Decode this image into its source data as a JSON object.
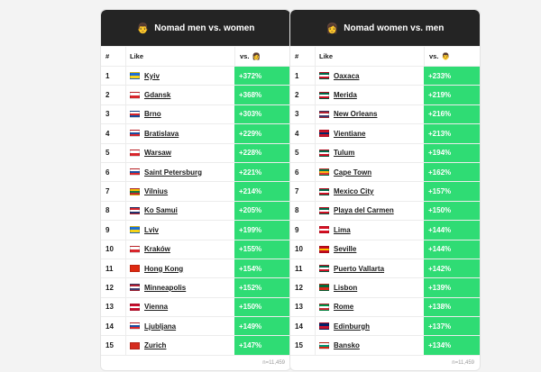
{
  "tables": [
    {
      "title": "Nomad men vs. women",
      "title_emoji": "👨",
      "header": {
        "num": "#",
        "like": "Like",
        "vs": "vs.",
        "vs_emoji": "👩"
      },
      "rows": [
        {
          "num": "1",
          "city": "Kyiv",
          "flag": [
            "#1b6fd6",
            "#f5d318"
          ],
          "vs": "+372%"
        },
        {
          "num": "2",
          "city": "Gdansk",
          "flag": [
            "#ffffff",
            "#d9262c"
          ],
          "vs": "+368%"
        },
        {
          "num": "3",
          "city": "Brno",
          "flag": [
            "#ffffff",
            "#d9262c",
            "#164a9b"
          ],
          "vs": "+303%"
        },
        {
          "num": "4",
          "city": "Bratislava",
          "flag": [
            "#ffffff",
            "#1a4ea3",
            "#d9262c"
          ],
          "vs": "+229%"
        },
        {
          "num": "5",
          "city": "Warsaw",
          "flag": [
            "#ffffff",
            "#d9262c"
          ],
          "vs": "+228%"
        },
        {
          "num": "6",
          "city": "Saint Petersburg",
          "flag": [
            "#ffffff",
            "#1a4ea3",
            "#d9262c"
          ],
          "vs": "+221%"
        },
        {
          "num": "7",
          "city": "Vilnius",
          "flag": [
            "#f8c300",
            "#1a7a3a",
            "#c1272d"
          ],
          "vs": "+214%"
        },
        {
          "num": "8",
          "city": "Ko Samui",
          "flag": [
            "#d9262c",
            "#ffffff",
            "#24306b"
          ],
          "vs": "+205%"
        },
        {
          "num": "9",
          "city": "Lviv",
          "flag": [
            "#1b6fd6",
            "#f5d318"
          ],
          "vs": "+199%"
        },
        {
          "num": "10",
          "city": "Kraków",
          "flag": [
            "#ffffff",
            "#d9262c"
          ],
          "vs": "+155%"
        },
        {
          "num": "11",
          "city": "Hong Kong",
          "flag": [
            "#de2910"
          ],
          "vs": "+154%"
        },
        {
          "num": "12",
          "city": "Minneapolis",
          "flag": [
            "#b22234",
            "#ffffff",
            "#3c3b6e"
          ],
          "vs": "+152%"
        },
        {
          "num": "13",
          "city": "Vienna",
          "flag": [
            "#c8102e",
            "#ffffff",
            "#c8102e"
          ],
          "vs": "+150%"
        },
        {
          "num": "14",
          "city": "Ljubljana",
          "flag": [
            "#ffffff",
            "#1a4ea3",
            "#d9262c"
          ],
          "vs": "+149%"
        },
        {
          "num": "15",
          "city": "Zurich",
          "flag": [
            "#d52b1e"
          ],
          "vs": "+147%"
        }
      ],
      "footnote": "n=11,459"
    },
    {
      "title": "Nomad women vs. men",
      "title_emoji": "👩",
      "header": {
        "num": "#",
        "like": "Like",
        "vs": "vs.",
        "vs_emoji": "👨"
      },
      "rows": [
        {
          "num": "1",
          "city": "Oaxaca",
          "flag": [
            "#006847",
            "#ffffff",
            "#ce1126"
          ],
          "vs": "+233%"
        },
        {
          "num": "2",
          "city": "Merida",
          "flag": [
            "#006847",
            "#ffffff",
            "#ce1126"
          ],
          "vs": "+219%"
        },
        {
          "num": "3",
          "city": "New Orleans",
          "flag": [
            "#b22234",
            "#ffffff",
            "#3c3b6e"
          ],
          "vs": "+216%"
        },
        {
          "num": "4",
          "city": "Vientiane",
          "flag": [
            "#ce1126",
            "#002868",
            "#ce1126"
          ],
          "vs": "+213%"
        },
        {
          "num": "5",
          "city": "Tulum",
          "flag": [
            "#006847",
            "#ffffff",
            "#ce1126"
          ],
          "vs": "+194%"
        },
        {
          "num": "6",
          "city": "Cape Town",
          "flag": [
            "#007a4d",
            "#ffb612",
            "#de3831"
          ],
          "vs": "+162%"
        },
        {
          "num": "7",
          "city": "Mexico City",
          "flag": [
            "#006847",
            "#ffffff",
            "#ce1126"
          ],
          "vs": "+157%"
        },
        {
          "num": "8",
          "city": "Playa del Carmen",
          "flag": [
            "#006847",
            "#ffffff",
            "#ce1126"
          ],
          "vs": "+150%"
        },
        {
          "num": "9",
          "city": "Lima",
          "flag": [
            "#d91023",
            "#ffffff",
            "#d91023"
          ],
          "vs": "+144%"
        },
        {
          "num": "10",
          "city": "Seville",
          "flag": [
            "#c60b1e",
            "#ffc400",
            "#c60b1e"
          ],
          "vs": "+144%"
        },
        {
          "num": "11",
          "city": "Puerto Vallarta",
          "flag": [
            "#006847",
            "#ffffff",
            "#ce1126"
          ],
          "vs": "+142%"
        },
        {
          "num": "12",
          "city": "Lisbon",
          "flag": [
            "#046a38",
            "#da291c"
          ],
          "vs": "+139%"
        },
        {
          "num": "13",
          "city": "Rome",
          "flag": [
            "#009246",
            "#ffffff",
            "#ce2b37"
          ],
          "vs": "+138%"
        },
        {
          "num": "14",
          "city": "Edinburgh",
          "flag": [
            "#012169",
            "#c8102e"
          ],
          "vs": "+137%"
        },
        {
          "num": "15",
          "city": "Bansko",
          "flag": [
            "#ffffff",
            "#00966e",
            "#d62612"
          ],
          "vs": "+134%"
        }
      ],
      "footnote": "n=11,459"
    }
  ],
  "colors": {
    "header_bg": "#242424",
    "vs_bg": "#2fdc74",
    "page_bg": "#f3f3f3"
  }
}
